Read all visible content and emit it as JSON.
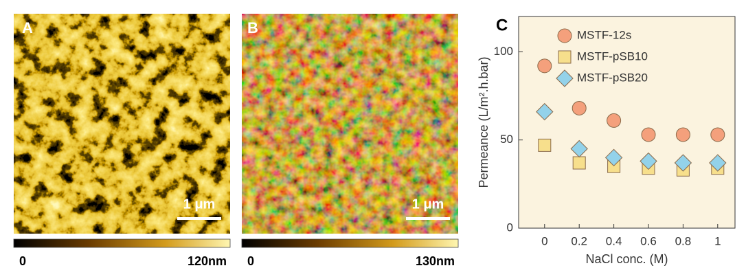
{
  "images": [
    {
      "label": "A",
      "scalebar": "1 μm",
      "colorbar_min": "0",
      "colorbar_max": "120nm"
    },
    {
      "label": "B",
      "scalebar": "1 μm",
      "colorbar_min": "0",
      "colorbar_max": "130nm"
    }
  ],
  "chart_data": {
    "type": "scatter",
    "panel_label": "C",
    "x_label": "NaCl conc. (M)",
    "y_label": "Permeance (L/m².h.bar)",
    "x": [
      0,
      0.2,
      0.4,
      0.6,
      0.8,
      1
    ],
    "series": [
      {
        "name": "MSTF-12s",
        "color": "#f4a07c",
        "marker": "circle",
        "values": [
          92,
          68,
          61,
          53,
          53,
          53
        ]
      },
      {
        "name": "MSTF-pSB10",
        "color": "#f7df8c",
        "marker": "square",
        "values": [
          47,
          37,
          35,
          34,
          33,
          34
        ]
      },
      {
        "name": "MSTF-pSB20",
        "color": "#93d2ea",
        "marker": "diamond",
        "values": [
          66,
          45,
          40,
          38,
          37,
          37
        ]
      }
    ],
    "xlim": [
      -0.15,
      1.1
    ],
    "ylim": [
      0,
      120
    ],
    "xticks": [
      0,
      0.2,
      0.4,
      0.6,
      0.8,
      1
    ],
    "yticks": [
      0,
      50,
      100
    ],
    "legend": "upper-right",
    "background": "#fbf3df"
  }
}
